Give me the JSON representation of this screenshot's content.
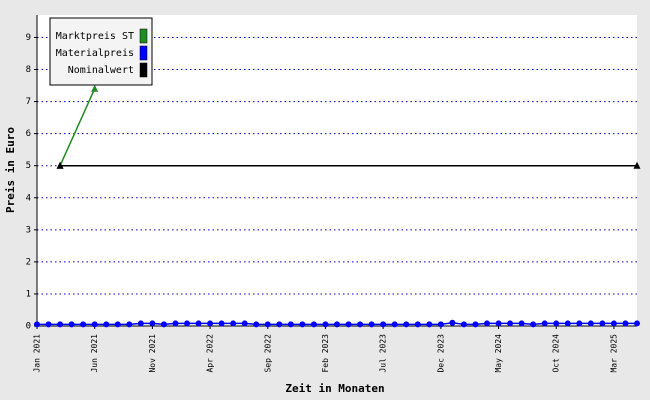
{
  "chart_data": {
    "type": "line",
    "x_label": "Zeit in Monaten",
    "y_label": "Preis in Euro",
    "categories": [
      "Jan 2021",
      null,
      null,
      null,
      null,
      "Jun 2021",
      null,
      null,
      null,
      null,
      "Nov 2021",
      null,
      null,
      null,
      null,
      "Apr 2022",
      null,
      null,
      null,
      null,
      "Sep 2022",
      null,
      null,
      null,
      null,
      "Feb 2023",
      null,
      null,
      null,
      null,
      "Jul 2023",
      null,
      null,
      null,
      null,
      "Dec 2023",
      null,
      null,
      null,
      null,
      "May 2024",
      null,
      null,
      null,
      null,
      "Oct 2024",
      null,
      null,
      null,
      null,
      "Mar 2025",
      null,
      null
    ],
    "series": [
      {
        "name": "Marktpreis ST",
        "color": "#228b22",
        "values": [
          null,
          null,
          5,
          5.8,
          6.6,
          7.4,
          null,
          null,
          null,
          null,
          null,
          null,
          null,
          null,
          null,
          null,
          null,
          null,
          null,
          null,
          null,
          null,
          null,
          null,
          null,
          null,
          null,
          null,
          null,
          null,
          null,
          null,
          null,
          null,
          null,
          null,
          null,
          null,
          null,
          null,
          null,
          null,
          null,
          null,
          null,
          null,
          null,
          null,
          null,
          null,
          null,
          null,
          null
        ]
      },
      {
        "name": "Materialpreis",
        "color": "#0000ff",
        "values": [
          0.05,
          0.05,
          0.05,
          0.05,
          0.05,
          0.05,
          0.05,
          0.05,
          0.05,
          0.08,
          0.08,
          0.05,
          0.08,
          0.08,
          0.08,
          0.08,
          0.08,
          0.08,
          0.08,
          0.05,
          0.05,
          0.05,
          0.05,
          0.05,
          0.05,
          0.05,
          0.05,
          0.05,
          0.05,
          0.05,
          0.05,
          0.05,
          0.05,
          0.05,
          0.05,
          0.05,
          0.1,
          0.05,
          0.05,
          0.08,
          0.08,
          0.08,
          0.08,
          0.05,
          0.08,
          0.08,
          0.08,
          0.08,
          0.08,
          0.08,
          0.08,
          0.08,
          0.08
        ]
      },
      {
        "name": "Nominalwert",
        "color": "#000000",
        "values": [
          null,
          null,
          5,
          5,
          5,
          5,
          5,
          5,
          5,
          5,
          5,
          5,
          5,
          5,
          5,
          5,
          5,
          5,
          5,
          5,
          5,
          5,
          5,
          5,
          5,
          5,
          5,
          5,
          5,
          5,
          5,
          5,
          5,
          5,
          5,
          5,
          5,
          5,
          5,
          5,
          5,
          5,
          5,
          5,
          5,
          5,
          5,
          5,
          5,
          5,
          5,
          5,
          5
        ]
      }
    ],
    "ylim": [
      0,
      9.7
    ],
    "yticks": [
      0,
      1,
      2,
      3,
      4,
      5,
      6,
      7,
      8,
      9
    ],
    "grid": true,
    "legend": "top-left"
  }
}
